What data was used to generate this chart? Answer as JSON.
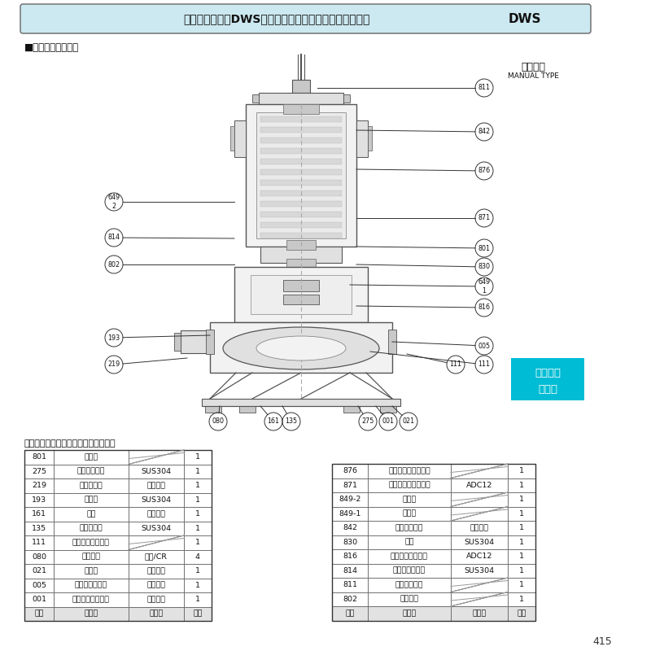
{
  "title_text": "【ダーウィン】DWS型樹脂製汚水・雑排水用水中ポンプ",
  "title_dws": "DWS",
  "section_label": "■構造断面図（例）",
  "manual_type_ja": "非自動形",
  "manual_type_en": "MANUAL TYPE",
  "note_text": "注）主軸材料はポンプ側を示します。",
  "page_number": "415",
  "cyan_box_line1": "汚水汚物",
  "cyan_box_line2": "水処理",
  "cyan_color": "#00bcd4",
  "bg_color": "#ffffff",
  "header_bg": "#cce8f0",
  "left_table": [
    [
      "801",
      "ロータ",
      "",
      "1"
    ],
    [
      "275",
      "羽根車ボルト",
      "SUS304",
      "1"
    ],
    [
      "219",
      "相フランジ",
      "合成樹脂",
      "1"
    ],
    [
      "193",
      "注油栓",
      "SUS304",
      "1"
    ],
    [
      "161",
      "底板",
      "合成樹脂",
      "1"
    ],
    [
      "135",
      "羽根裏底金",
      "SUS304",
      "1"
    ],
    [
      "111",
      "メカニカルシール",
      "",
      "1"
    ],
    [
      "080",
      "ポンプ脚",
      "ゴム/CR",
      "4"
    ],
    [
      "021",
      "羽根車",
      "合成樹脂",
      "1"
    ],
    [
      "005",
      "中間ケーシング",
      "合成樹脂",
      "1"
    ],
    [
      "001",
      "ポンプケーシング",
      "合成樹脂",
      "1"
    ],
    [
      "番号",
      "部品名",
      "材　料",
      "個数"
    ]
  ],
  "right_table": [
    [
      "876",
      "電動機焼損防止装置",
      "",
      "1"
    ],
    [
      "871",
      "反負荷側ブラケット",
      "ADC12",
      "1"
    ],
    [
      "849-2",
      "玉軸受",
      "",
      "1"
    ],
    [
      "849-1",
      "玉軸受",
      "",
      "1"
    ],
    [
      "842",
      "電動機カバー",
      "合成樹脂",
      "1"
    ],
    [
      "830",
      "主軸",
      "SUS304",
      "1"
    ],
    [
      "816",
      "負荷側ブラケット",
      "ADC12",
      "1"
    ],
    [
      "814",
      "電動機フレーム",
      "SUS304",
      "1"
    ],
    [
      "811",
      "水中ケーブル",
      "",
      "1"
    ],
    [
      "802",
      "ステータ",
      "",
      "1"
    ],
    [
      "番号",
      "部品名",
      "材　料",
      "個数"
    ]
  ]
}
